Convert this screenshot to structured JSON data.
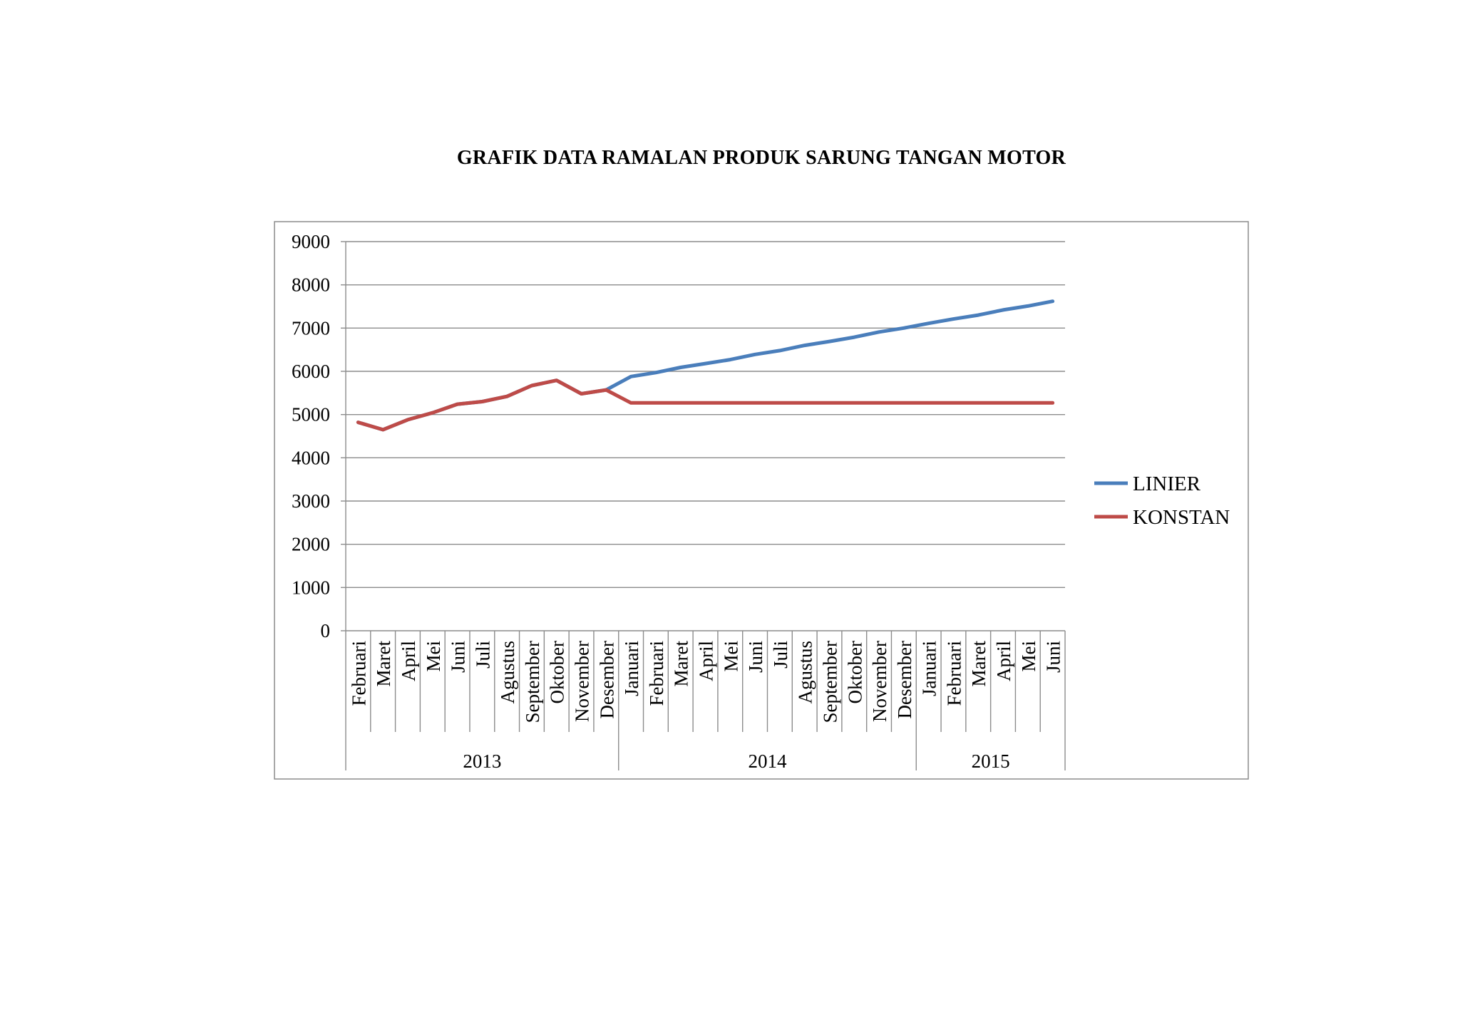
{
  "chart_data": {
    "type": "line",
    "title": "GRAFIK DATA RAMALAN PRODUK SARUNG TANGAN MOTOR",
    "xlabel": "",
    "ylabel": "",
    "ylim": [
      0,
      9000
    ],
    "yticks": [
      "0",
      "1000",
      "2000",
      "3000",
      "4000",
      "5000",
      "6000",
      "7000",
      "8000",
      "9000"
    ],
    "grid": true,
    "legend_position": "right",
    "categories": [
      "Februari",
      "Maret",
      "April",
      "Mei",
      "Juni",
      "Juli",
      "Agustus",
      "September",
      "Oktober",
      "November",
      "Desember",
      "Januari",
      "Februari",
      "Maret",
      "April",
      "Mei",
      "Juni",
      "Juli",
      "Agustus",
      "September",
      "Oktober",
      "November",
      "Desember",
      "Januari",
      "Februari",
      "Maret",
      "April",
      "Mei",
      "Juni"
    ],
    "groups": [
      {
        "label": "2013",
        "count": 11
      },
      {
        "label": "2014",
        "count": 12
      },
      {
        "label": "2015",
        "count": 6
      }
    ],
    "series": [
      {
        "name": "LINIER",
        "color": "#4a7ebb",
        "values": [
          4820,
          4650,
          4880,
          5040,
          5240,
          5300,
          5420,
          5670,
          5790,
          5480,
          5570,
          5880,
          5970,
          6090,
          6180,
          6270,
          6390,
          6480,
          6600,
          6690,
          6790,
          6910,
          7000,
          7110,
          7210,
          7300,
          7420,
          7510,
          7620
        ]
      },
      {
        "name": "KONSTAN",
        "color": "#be4b48",
        "values": [
          4820,
          4650,
          4880,
          5040,
          5240,
          5300,
          5420,
          5670,
          5790,
          5480,
          5570,
          5270,
          5270,
          5270,
          5270,
          5270,
          5270,
          5270,
          5270,
          5270,
          5270,
          5270,
          5270,
          5270,
          5270,
          5270,
          5270,
          5270,
          5270
        ]
      }
    ]
  }
}
